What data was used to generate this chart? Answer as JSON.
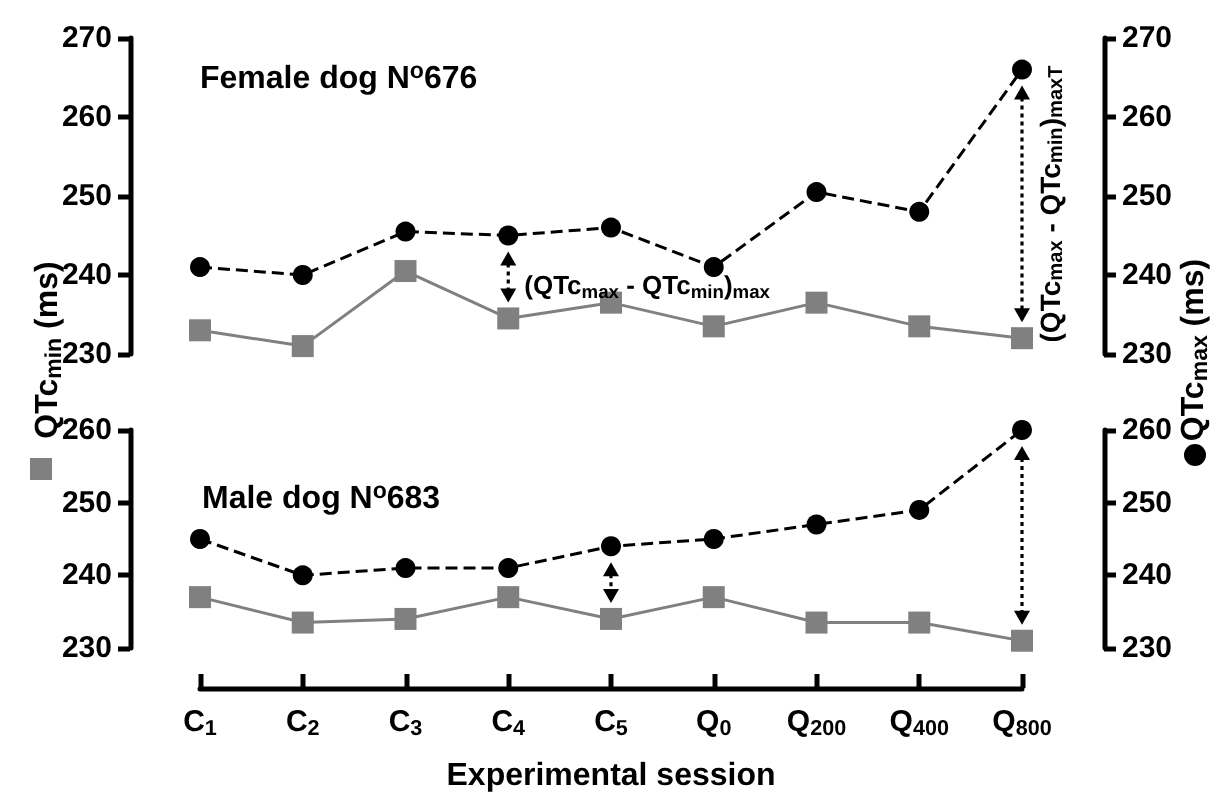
{
  "chart_data": [
    {
      "type": "line",
      "categories": [
        null,
        null,
        null,
        null,
        null,
        null,
        null,
        null,
        null
      ],
      "series": [
        {
          "color": "#808080",
          "marker": "square",
          "line_style": "solid",
          "values": [
            233,
            231,
            240.5,
            234.5,
            236.5,
            233.5,
            236.5,
            233.5,
            232
          ]
        },
        {
          "color": "#000000",
          "marker": "circle",
          "line_style": "dashed",
          "axis": "y2",
          "values": [
            241,
            240,
            245.5,
            245,
            246,
            241,
            250.5,
            248,
            266
          ]
        }
      ],
      "ylabel": "QTc$_{min}$ (ms)",
      "y2label": "QTc$_{max}$ (ms)",
      "ylim": [
        230,
        270
      ],
      "yticks": [
        230,
        240,
        250,
        260,
        270
      ],
      "y2lim": [
        230,
        270
      ],
      "y2ticks": [
        230,
        240,
        250,
        260,
        270
      ],
      "tick_labels": "y",
      "annotations": [
        "Female dog N$^{o}$676",
        "(QTc$_{max}$ - QTc$_{min}$)$_{max}$",
        "(QTc$_{max}$ - QTc$_{min}$)$_{maxT}$"
      ]
    },
    {
      "type": "line",
      "categories": [
        "C$_{1}$",
        "C$_{2}$",
        "C$_{3}$",
        "C$_{4}$",
        "C$_{5}$",
        "Q$_{0}$",
        "Q$_{200}$",
        "Q$_{400}$",
        "Q$_{800}$"
      ],
      "series": [
        {
          "color": "#808080",
          "marker": "square",
          "line_style": "solid",
          "values": [
            237,
            233.5,
            234,
            237,
            234,
            237,
            233.5,
            233.5,
            231
          ]
        },
        {
          "color": "#000000",
          "marker": "circle",
          "line_style": "dashed",
          "axis": "y2",
          "values": [
            245,
            240,
            241,
            241,
            244,
            245,
            247,
            249,
            260
          ]
        }
      ],
      "xlabel": "Experimental session",
      "ylim": [
        230,
        260
      ],
      "yticks": [
        230,
        240,
        250,
        260
      ],
      "y2lim": [
        230,
        260
      ],
      "y2ticks": [
        230,
        240,
        250,
        260
      ],
      "annotations": [
        "Male dog N$^{o}$683"
      ]
    }
  ]
}
